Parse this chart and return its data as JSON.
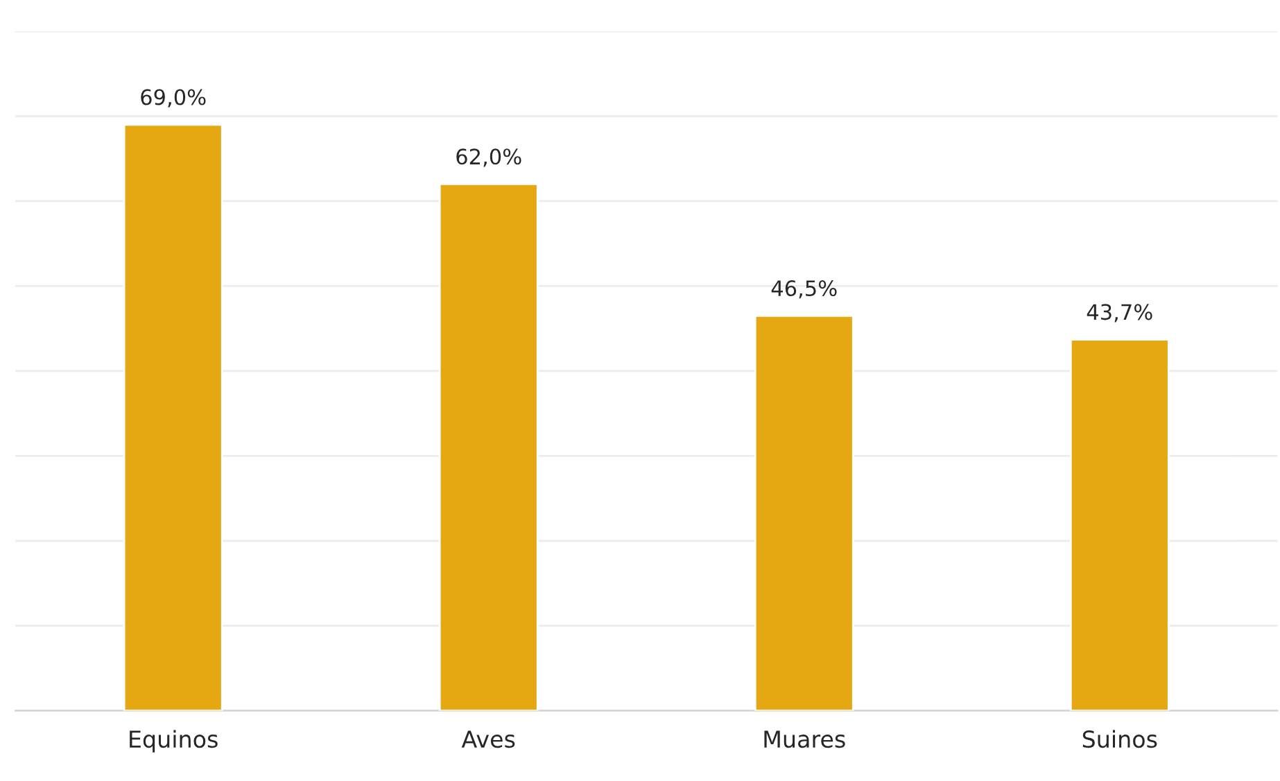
{
  "chart_data": {
    "type": "bar",
    "categories": [
      "Equinos",
      "Aves",
      "Muares",
      "Suinos"
    ],
    "values": [
      69.0,
      62.0,
      46.5,
      43.7
    ],
    "color": "#e5a812",
    "value_labels": [
      "69,0%",
      "62,0%",
      "46,5%",
      "43,7%"
    ],
    "ylim": [
      0,
      80
    ],
    "yticks": [
      {
        "value": 0,
        "label": null
      },
      {
        "value": 10,
        "label": null
      },
      {
        "value": 20,
        "label": null
      },
      {
        "value": 30,
        "label": null
      },
      {
        "value": 40,
        "label": null
      },
      {
        "value": 50,
        "label": null
      },
      {
        "value": 60,
        "label": null
      },
      {
        "value": 70,
        "label": null
      },
      {
        "value": 80,
        "label": null
      }
    ],
    "tick_labels": "x",
    "grid": "y",
    "legend": false
  }
}
